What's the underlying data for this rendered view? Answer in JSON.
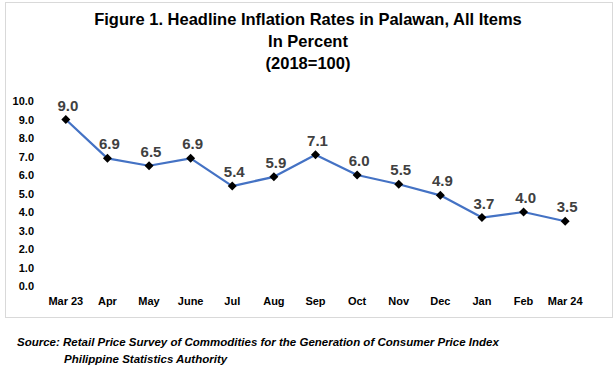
{
  "chart_data": {
    "type": "line",
    "title": "Figure 1. Headline Inflation Rates in Palawan, All Items",
    "subtitle": [
      "In Percent",
      "(2018=100)"
    ],
    "source": [
      "Source: Retail Price Survey of Commodities for the Generation of Consumer Price Index",
      "Philippine Statistics Authority"
    ],
    "categories": [
      "Mar 23",
      "Apr",
      "May",
      "June",
      "Jul",
      "Aug",
      "Sep",
      "Oct",
      "Nov",
      "Dec",
      "Jan",
      "Feb",
      "Mar 24"
    ],
    "values": [
      9.0,
      6.9,
      6.5,
      6.9,
      5.4,
      5.9,
      7.1,
      6.0,
      5.5,
      4.9,
      3.7,
      4.0,
      3.5
    ],
    "value_labels": [
      "9.0",
      "6.9",
      "6.5",
      "6.9",
      "5.4",
      "5.9",
      "7.1",
      "6.0",
      "5.5",
      "4.9",
      "3.7",
      "4.0",
      "3.5"
    ],
    "color": "#4472c4",
    "marker": "diamond",
    "ylim": [
      0,
      10
    ],
    "yticks": [
      {
        "value": 0,
        "label": "0.0"
      },
      {
        "value": 1,
        "label": "1.0"
      },
      {
        "value": 2,
        "label": "2.0"
      },
      {
        "value": 3,
        "label": "3.0"
      },
      {
        "value": 4,
        "label": "4.0"
      },
      {
        "value": 5,
        "label": "5.0"
      },
      {
        "value": 6,
        "label": "6.0"
      },
      {
        "value": 7,
        "label": "7.0"
      },
      {
        "value": 8,
        "label": "8.0"
      },
      {
        "value": 9,
        "label": "9.0"
      },
      {
        "value": 10,
        "label": "10.0"
      }
    ],
    "grid": false,
    "data_labels": true
  }
}
